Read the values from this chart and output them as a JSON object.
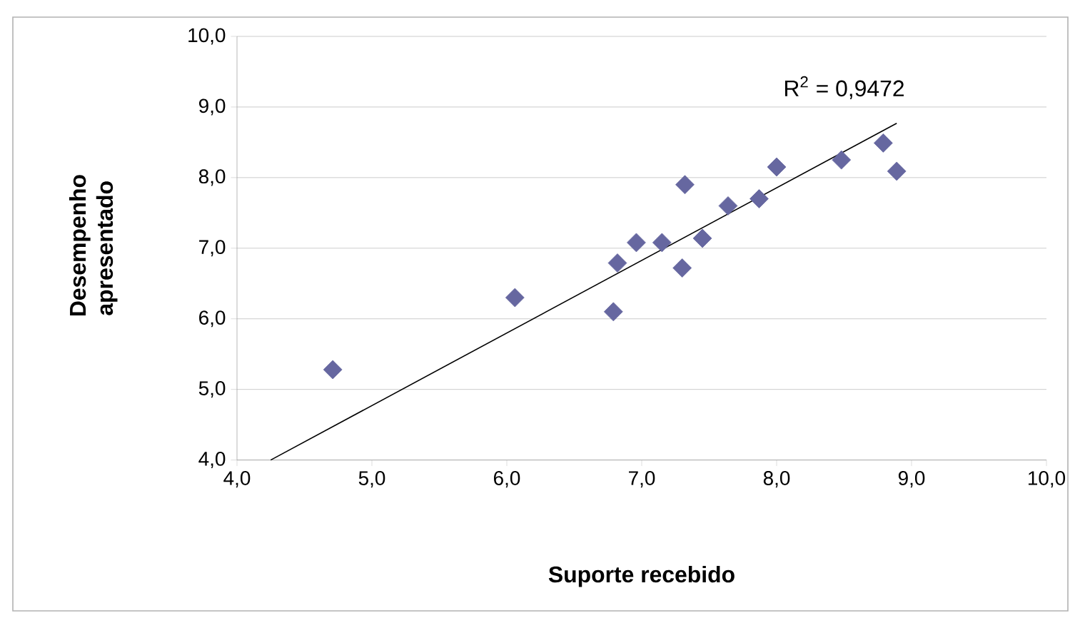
{
  "chart_data": {
    "type": "scatter",
    "xlabel": "Suporte recebido",
    "ylabel": "Desempenho apresentado",
    "annotations": [
      "R$^{2}$ = 0,9472"
    ],
    "xlim": [
      4,
      10
    ],
    "ylim": [
      4,
      10
    ],
    "xticks": [
      {
        "value": 4,
        "label": "4,0"
      },
      {
        "value": 5,
        "label": "5,0"
      },
      {
        "value": 6,
        "label": "6,0"
      },
      {
        "value": 7,
        "label": "7,0"
      },
      {
        "value": 8,
        "label": "8,0"
      },
      {
        "value": 9,
        "label": "9,0"
      },
      {
        "value": 10,
        "label": "10,0"
      }
    ],
    "yticks": [
      {
        "value": 4,
        "label": "4,0"
      },
      {
        "value": 5,
        "label": "5,0"
      },
      {
        "value": 6,
        "label": "6,0"
      },
      {
        "value": 7,
        "label": "7,0"
      },
      {
        "value": 8,
        "label": "8,0"
      },
      {
        "value": 9,
        "label": "9,0"
      },
      {
        "value": 10,
        "label": "10,0"
      }
    ],
    "grid": "y",
    "marker": "diamond",
    "series": [
      {
        "color": "#6667a0",
        "x": [
          4.71,
          6.06,
          6.79,
          6.82,
          7.3,
          6.96,
          7.15,
          7.32,
          7.45,
          7.64,
          7.87,
          8.0,
          8.48,
          8.79,
          8.89
        ],
        "values": [
          5.28,
          6.3,
          6.1,
          6.79,
          6.72,
          7.08,
          7.08,
          7.9,
          7.14,
          7.6,
          7.7,
          8.15,
          8.25,
          8.49,
          8.09
        ]
      },
      {
        "type": "line",
        "color": "#000000",
        "marker": "none",
        "x": [
          4.25,
          8.89
        ],
        "values": [
          4.0,
          8.77
        ]
      }
    ]
  }
}
